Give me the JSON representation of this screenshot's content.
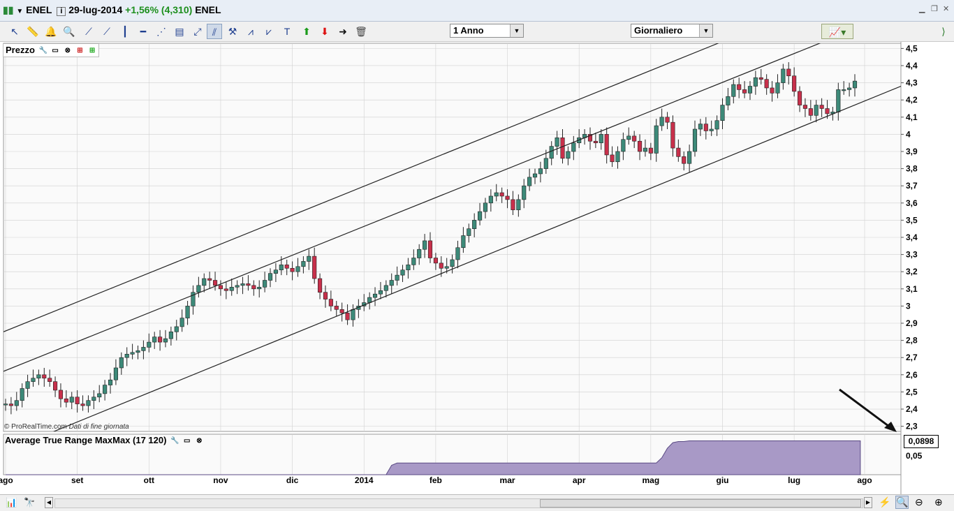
{
  "window": {
    "symbol": "ENEL",
    "date": "29-lug-2014",
    "change": "+1,56% (4,310)",
    "name": "ENEL"
  },
  "toolbar": {
    "period_value": "1 Anno",
    "interval_value": "Giornaliero"
  },
  "price_panel": {
    "label": "Prezzo",
    "copyright": "© ProRealTime.com",
    "data_note": "Dati di fine giornata",
    "y_ticks": [
      "4,5",
      "4,4",
      "4,3",
      "4,2",
      "4,1",
      "4",
      "3,9",
      "3,8",
      "3,7",
      "3,6",
      "3,5",
      "3,4",
      "3,3",
      "3,2",
      "3,1",
      "3",
      "2,9",
      "2,8",
      "2,7",
      "2,6",
      "2,5",
      "2,4",
      "2,3"
    ]
  },
  "atr_panel": {
    "label": "Average True Range MaxMax (17 120)",
    "value_badge": "0,0898",
    "y_tick": "0,05",
    "fill_color": "#a899c6"
  },
  "x_axis": {
    "months": [
      "ago",
      "set",
      "ott",
      "nov",
      "dic",
      "2014",
      "feb",
      "mar",
      "apr",
      "mag",
      "giu",
      "lug",
      "ago"
    ]
  },
  "colors": {
    "up_candle": "#3d8a79",
    "down_candle": "#c8304b",
    "channel_line": "#222222",
    "grid": "#d0d0d0"
  },
  "chart_data": {
    "type": "candlestick",
    "series": [
      {
        "name": "ENEL",
        "values": [
          2.43,
          2.42,
          2.45,
          2.52,
          2.56,
          2.58,
          2.6,
          2.58,
          2.56,
          2.51,
          2.46,
          2.44,
          2.47,
          2.43,
          2.42,
          2.45,
          2.47,
          2.49,
          2.54,
          2.57,
          2.64,
          2.7,
          2.72,
          2.73,
          2.74,
          2.76,
          2.79,
          2.82,
          2.79,
          2.81,
          2.85,
          2.88,
          2.93,
          3.0,
          3.08,
          3.12,
          3.16,
          3.15,
          3.12,
          3.1,
          3.09,
          3.11,
          3.12,
          3.13,
          3.12,
          3.1,
          3.11,
          3.15,
          3.19,
          3.21,
          3.24,
          3.22,
          3.2,
          3.23,
          3.26,
          3.29,
          3.16,
          3.08,
          3.04,
          3.0,
          2.98,
          2.96,
          2.92,
          2.98,
          3.0,
          3.02,
          3.05,
          3.07,
          3.09,
          3.12,
          3.15,
          3.18,
          3.21,
          3.24,
          3.28,
          3.33,
          3.38,
          3.28,
          3.25,
          3.22,
          3.23,
          3.27,
          3.34,
          3.41,
          3.45,
          3.5,
          3.55,
          3.6,
          3.64,
          3.66,
          3.64,
          3.62,
          3.56,
          3.62,
          3.7,
          3.75,
          3.77,
          3.8,
          3.86,
          3.93,
          3.98,
          3.86,
          3.9,
          3.95,
          3.98,
          4.0,
          3.96,
          3.95,
          4.0,
          3.88,
          3.84,
          3.9,
          3.97,
          3.99,
          3.96,
          3.9,
          3.92,
          3.89,
          4.05,
          4.1,
          4.07,
          3.92,
          3.87,
          3.83,
          3.9,
          4.03,
          4.06,
          4.02,
          4.03,
          4.08,
          4.17,
          4.22,
          4.29,
          4.26,
          4.24,
          4.28,
          4.33,
          4.32,
          4.27,
          4.24,
          4.3,
          4.38,
          4.34,
          4.25,
          4.17,
          4.15,
          4.11,
          4.17,
          4.15,
          4.12,
          4.13,
          4.26,
          4.26,
          4.27,
          4.31
        ]
      },
      {
        "name": "Average True Range MaxMax (17 120)",
        "values": [
          0.0,
          0.0,
          0.0,
          0.0,
          0.0,
          0.0,
          0.0,
          0.0,
          0.0,
          0.0,
          0.0,
          0.0,
          0.0,
          0.0,
          0.0,
          0.0,
          0.0,
          0.0,
          0.0,
          0.0,
          0.0,
          0.0,
          0.0,
          0.0,
          0.0,
          0.0,
          0.0,
          0.0,
          0.0,
          0.0,
          0.0,
          0.0,
          0.0,
          0.0,
          0.0,
          0.0,
          0.0,
          0.0,
          0.0,
          0.0,
          0.0,
          0.0,
          0.0,
          0.0,
          0.0,
          0.0,
          0.0,
          0.0,
          0.0,
          0.0,
          0.0,
          0.0,
          0.0,
          0.0,
          0.0,
          0.0,
          0.0,
          0.0,
          0.0,
          0.0,
          0.0,
          0.0,
          0.0,
          0.0,
          0.0,
          0.0,
          0.0,
          0.0,
          0.0,
          0.0,
          0.025,
          0.031,
          0.031,
          0.031,
          0.031,
          0.031,
          0.031,
          0.031,
          0.031,
          0.031,
          0.031,
          0.031,
          0.031,
          0.031,
          0.031,
          0.031,
          0.031,
          0.031,
          0.031,
          0.031,
          0.031,
          0.031,
          0.031,
          0.031,
          0.031,
          0.031,
          0.031,
          0.031,
          0.031,
          0.031,
          0.031,
          0.031,
          0.031,
          0.031,
          0.031,
          0.031,
          0.031,
          0.031,
          0.031,
          0.031,
          0.031,
          0.031,
          0.031,
          0.031,
          0.031,
          0.031,
          0.031,
          0.031,
          0.031,
          0.045,
          0.07,
          0.085,
          0.088,
          0.088,
          0.0898,
          0.0898,
          0.0898,
          0.0898,
          0.0898,
          0.0898,
          0.0898,
          0.0898,
          0.0898,
          0.0898,
          0.0898,
          0.0898,
          0.0898,
          0.0898,
          0.0898,
          0.0898,
          0.0898,
          0.0898,
          0.0898,
          0.0898,
          0.0898,
          0.0898,
          0.0898,
          0.0898,
          0.0898,
          0.0898,
          0.0898,
          0.0898,
          0.0898,
          0.0898,
          0.0898,
          0.0898
        ]
      }
    ],
    "y_range": [
      2.27,
      4.53
    ]
  }
}
